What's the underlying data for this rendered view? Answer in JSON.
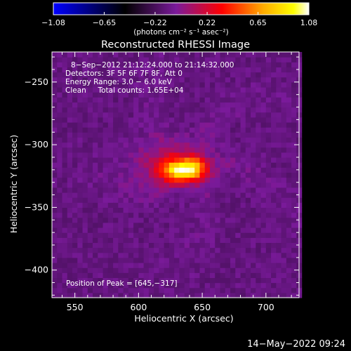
{
  "chart_data": {
    "type": "heatmap",
    "title": "Reconstructed RHESSI Image",
    "xlabel": "Heliocentric X (arcsec)",
    "ylabel": "Heliocentric Y (arcsec)",
    "xlim": [
      532,
      726
    ],
    "ylim": [
      -422,
      -226
    ],
    "x_ticks": [
      550,
      600,
      650,
      700
    ],
    "y_ticks": [
      -250,
      -300,
      -350,
      -400
    ],
    "x_tick_labels": [
      "550",
      "600",
      "650",
      "700"
    ],
    "y_tick_labels": [
      "−250",
      "−300",
      "−350",
      "−400"
    ],
    "colorbar": {
      "min": -1.08,
      "max": 1.08,
      "tick_values": [
        -1.08,
        -0.65,
        -0.22,
        0.22,
        0.65,
        1.08
      ],
      "tick_labels": [
        "−1.08",
        "−0.65",
        "−0.22",
        "0.22",
        "0.65",
        "1.08"
      ],
      "unit_label": "(photons cm⁻² s⁻¹ asec⁻²)"
    },
    "annotations": [
      "8−Sep−2012 21:12:24.000 to 21:14:32.000",
      "Detectors: 3F 5F 6F 7F 8F, Att 0",
      "Energy Range: 3.0 − 6.0 keV",
      "Clean     Total counts: 1.65E+04"
    ],
    "peak_label": "Position of Peak = [645,−317]",
    "peak": {
      "x": 645,
      "y": -317
    },
    "sources": [
      {
        "x": 634,
        "y": -320,
        "sx": 11,
        "sy": 6,
        "amp": 0.95
      },
      {
        "x": 645,
        "y": -317,
        "sx": 6,
        "sy": 7,
        "amp": 0.25
      },
      {
        "x": 627,
        "y": -315,
        "sx": 22,
        "sy": 13,
        "amp": 0.25
      }
    ],
    "background_level": -0.12,
    "colormap": [
      "#0000ff",
      "#000000",
      "#7a1a9a",
      "#ff0000",
      "#ffaa00",
      "#ffff00",
      "#ffffff"
    ]
  },
  "footer": {
    "timestamp": "14−May−2022 09:24"
  }
}
